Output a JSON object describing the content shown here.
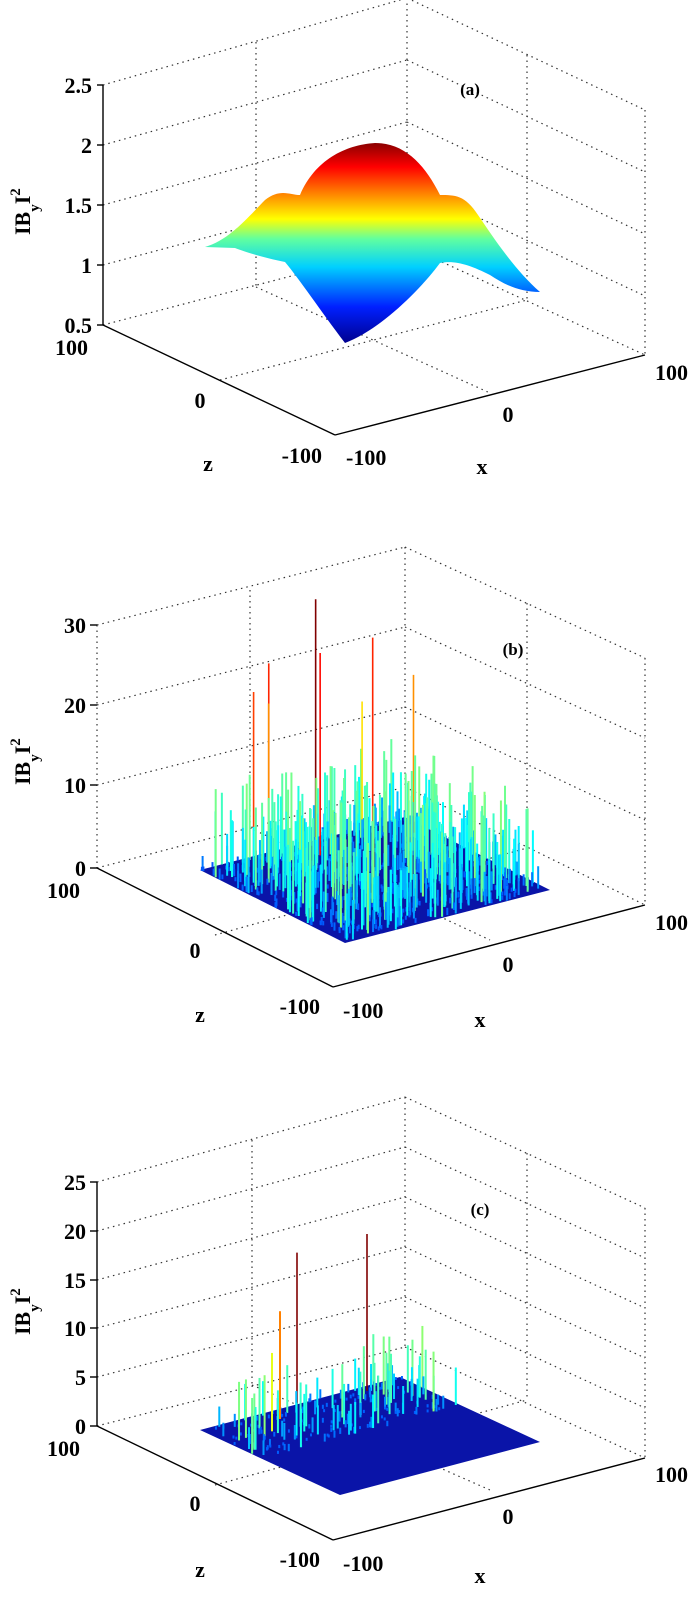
{
  "figure": {
    "panels": [
      {
        "label": "(a)",
        "ylabel": "|B_y|^2",
        "ylabel_main": "IB",
        "ylabel_sub": "y",
        "ylabel_tail": "I",
        "ylabel_sup": "2",
        "zlabel": "z",
        "xlabel": "x",
        "yticks": [
          "0.5",
          "1",
          "1.5",
          "2",
          "2.5"
        ],
        "zticks": [
          "100",
          "0",
          "-100"
        ],
        "xticks": [
          "-100",
          "0",
          "100"
        ]
      },
      {
        "label": "(b)",
        "ylabel": "|B_y|^2",
        "ylabel_main": "IB",
        "ylabel_sub": "y",
        "ylabel_tail": "I",
        "ylabel_sup": "2",
        "zlabel": "z",
        "xlabel": "x",
        "yticks": [
          "0",
          "10",
          "20",
          "30"
        ],
        "zticks": [
          "100",
          "0",
          "-100"
        ],
        "xticks": [
          "-100",
          "0",
          "100"
        ]
      },
      {
        "label": "(c)",
        "ylabel": "|B_y|^2",
        "ylabel_main": "IB",
        "ylabel_sub": "y",
        "ylabel_tail": "I",
        "ylabel_sup": "2",
        "zlabel": "z",
        "xlabel": "x",
        "yticks": [
          "0",
          "5",
          "10",
          "15",
          "20",
          "25"
        ],
        "zticks": [
          "100",
          "0",
          "-100"
        ],
        "xticks": [
          "-100",
          "0",
          "100"
        ]
      }
    ]
  },
  "chart_data": [
    {
      "type": "surface3d",
      "title": "(a)",
      "xlabel": "x",
      "ylabel": "z",
      "zlabel": "|B_y|^2",
      "xlim": [
        -100,
        100
      ],
      "ylim": [
        -100,
        100
      ],
      "zlim": [
        0.5,
        2.5
      ],
      "xticks": [
        -100,
        0,
        100
      ],
      "yticks": [
        -100,
        0,
        100
      ],
      "zticks": [
        0.5,
        1,
        1.5,
        2,
        2.5
      ],
      "grid": true,
      "colormap": "jet",
      "description": "Smooth surface with central Gaussian-like peak (~2.0 at center), four side lobes (~1.3-1.4) along the axes, dropping to minima (~0.6-0.9) at the corners.",
      "peak_value": 2.0,
      "min_value": 0.6
    },
    {
      "type": "surface3d",
      "title": "(b)",
      "xlabel": "x",
      "ylabel": "z",
      "zlabel": "|B_y|^2",
      "xlim": [
        -100,
        100
      ],
      "ylim": [
        -100,
        100
      ],
      "zlim": [
        0,
        30
      ],
      "xticks": [
        -100,
        0,
        100
      ],
      "yticks": [
        -100,
        0,
        100
      ],
      "zticks": [
        0,
        10,
        20,
        30
      ],
      "grid": true,
      "colormap": "jet",
      "description": "Highly irregular speckle-like surface with many sharp spikes; most values below ~10, tallest spikes reaching ~30.",
      "peak_value": 30,
      "typical_max": 10
    },
    {
      "type": "surface3d",
      "title": "(c)",
      "xlabel": "x",
      "ylabel": "z",
      "zlabel": "|B_y|^2",
      "xlim": [
        -100,
        100
      ],
      "ylim": [
        -100,
        100
      ],
      "zlim": [
        0,
        25
      ],
      "xticks": [
        -100,
        0,
        100
      ],
      "yticks": [
        -100,
        0,
        100
      ],
      "zticks": [
        0,
        5,
        10,
        15,
        20,
        25
      ],
      "grid": true,
      "colormap": "jet",
      "description": "Mostly flat near-zero surface with sparse spikes concentrated at the back; two tallest spikes reach ~16, others ~5-12.",
      "peak_value": 16
    }
  ]
}
